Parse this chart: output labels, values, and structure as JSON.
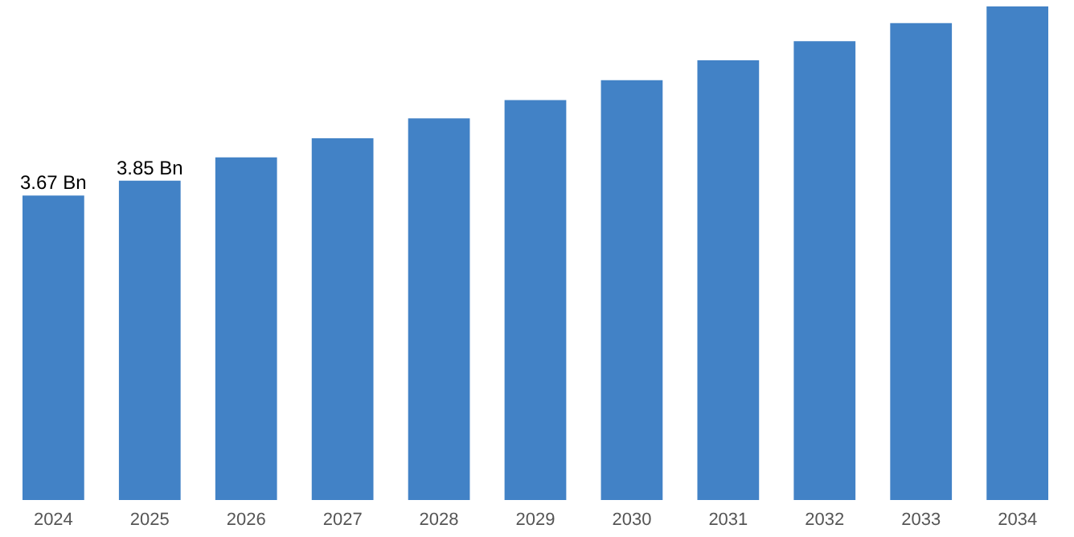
{
  "chart_data": {
    "type": "bar",
    "categories": [
      "2024",
      "2025",
      "2026",
      "2027",
      "2028",
      "2029",
      "2030",
      "2031",
      "2032",
      "2033",
      "2034"
    ],
    "values": [
      3.67,
      3.85,
      4.13,
      4.36,
      4.6,
      4.82,
      5.06,
      5.3,
      5.53,
      5.75,
      5.95
    ],
    "value_labels": [
      "3.67 Bn",
      "3.85 Bn",
      null,
      null,
      null,
      null,
      null,
      null,
      null,
      null,
      null
    ],
    "color": "#4282c6",
    "tick_labels": "x"
  }
}
